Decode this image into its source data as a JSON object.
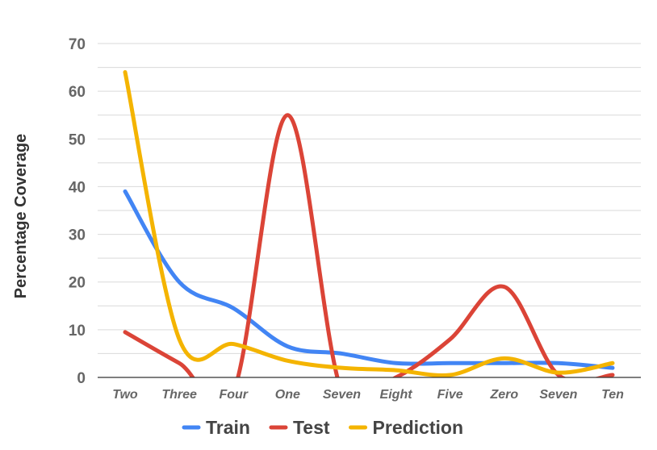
{
  "chart_data": {
    "type": "line",
    "title": "",
    "xlabel": "",
    "ylabel": "Percentage Coverage",
    "categories": [
      "Two",
      "Three",
      "Four",
      "One",
      "Seven",
      "Eight",
      "Five",
      "Zero",
      "Seven",
      "Ten"
    ],
    "ylim": [
      0,
      70
    ],
    "yticks": [
      0,
      10,
      20,
      30,
      40,
      50,
      60,
      70
    ],
    "grid": true,
    "legend_position": "bottom",
    "smooth": true,
    "series": [
      {
        "name": "Train",
        "color": "#4285f4",
        "values": [
          39,
          20,
          14.5,
          6.5,
          5,
          3,
          3,
          3,
          3,
          2
        ]
      },
      {
        "name": "Test",
        "color": "#db4437",
        "values": [
          9.5,
          3,
          -3,
          55,
          -3,
          0,
          8,
          19,
          0.5,
          0.5
        ]
      },
      {
        "name": "Prediction",
        "color": "#f4b400",
        "values": [
          64,
          8,
          7,
          3.5,
          2,
          1.5,
          0.5,
          4,
          1,
          3
        ]
      }
    ]
  }
}
